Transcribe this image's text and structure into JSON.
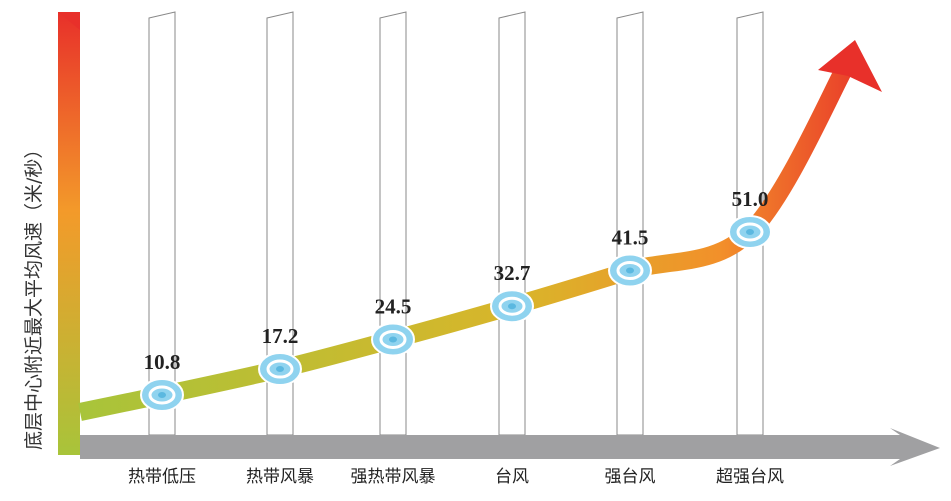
{
  "chart_data": {
    "type": "line",
    "y_label": "底层中心附近最大平均风速（米/秒）",
    "categories": [
      "热带低压",
      "热带风暴",
      "强热带风暴",
      "台风",
      "强台风",
      "超强台风"
    ],
    "values": [
      10.8,
      17.2,
      24.5,
      32.7,
      41.5,
      51.0
    ],
    "value_labels": [
      "10.8",
      "17.2",
      "24.5",
      "32.7",
      "41.5",
      "51.0"
    ]
  }
}
